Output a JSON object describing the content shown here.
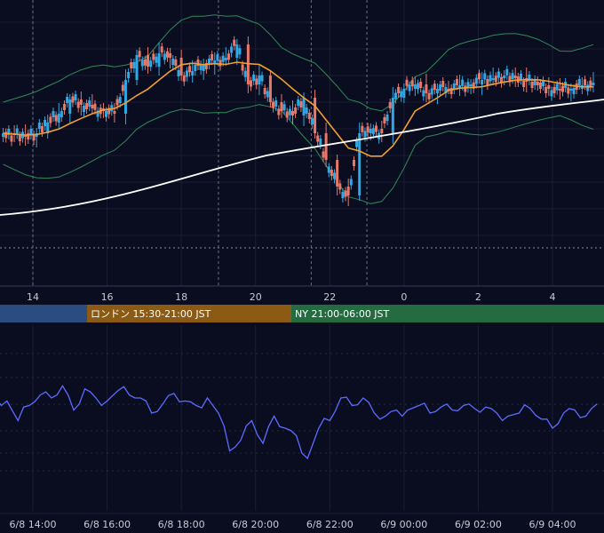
{
  "chart_data": {
    "type": "candlestick",
    "price_panel": {
      "x_hours": [
        13.2,
        13.5,
        13.8,
        14.1,
        14.4,
        14.7,
        15.0,
        15.3,
        15.6,
        15.9,
        16.2,
        16.5,
        16.8,
        17.1,
        17.4,
        17.7,
        18.0,
        18.3,
        18.6,
        18.9,
        19.2,
        19.5,
        19.8,
        20.1,
        20.4,
        20.7,
        21.0,
        21.3,
        21.6,
        21.9,
        22.2,
        22.5,
        22.8,
        23.1,
        23.4,
        23.7,
        24.0,
        24.3,
        24.6,
        24.9,
        25.2,
        25.5,
        25.8,
        26.1,
        26.4,
        26.7,
        27.0,
        27.3,
        27.6,
        27.9,
        28.2,
        28.5,
        28.8,
        29.1
      ],
      "close": [
        150,
        152,
        154,
        150,
        138,
        128,
        112,
        118,
        122,
        125,
        128,
        90,
        62,
        75,
        60,
        65,
        85,
        80,
        72,
        68,
        65,
        50,
        95,
        85,
        115,
        125,
        130,
        110,
        150,
        180,
        210,
        220,
        150,
        145,
        150,
        110,
        100,
        95,
        105,
        100,
        100,
        96,
        95,
        90,
        88,
        85,
        88,
        92,
        96,
        100,
        102,
        100,
        96,
        93
      ],
      "colors": {
        "up": "#2fa8e6",
        "down": "#e8786a",
        "ma_fast": "#f0a030",
        "ma_slow": "#ffffff",
        "band": "#2e8b57"
      }
    },
    "session_bar": [
      {
        "label": "",
        "color": "#2b4c7e"
      },
      {
        "label": "ロンドン 15:30-21:00 JST",
        "color": "#8b5a14"
      },
      {
        "label": "NY 21:00-06:00 JST",
        "color": "#256b40"
      }
    ],
    "top_axis_ticks": [
      "14",
      "16",
      "18",
      "20",
      "22",
      "0",
      "2",
      "4"
    ],
    "bottom_axis_ticks": [
      "6/8 14:00",
      "6/8 16:00",
      "6/8 18:00",
      "6/8 20:00",
      "6/8 22:00",
      "6/9 00:00",
      "6/9 02:00",
      "6/9 04:00"
    ],
    "oscillator": {
      "x_hours": [
        13.0,
        13.3,
        13.6,
        13.9,
        14.2,
        14.5,
        14.8,
        15.1,
        15.4,
        15.7,
        16.0,
        16.3,
        16.6,
        16.9,
        17.2,
        17.5,
        17.8,
        18.1,
        18.4,
        18.7,
        19.0,
        19.3,
        19.6,
        19.9,
        20.2,
        20.5,
        20.8,
        21.1,
        21.4,
        21.7,
        22.0,
        22.3,
        22.6,
        22.9,
        23.2,
        23.5,
        23.8,
        24.1,
        24.4,
        24.7,
        25.0,
        25.3,
        25.6,
        25.9,
        26.2,
        26.5,
        26.8,
        27.1,
        27.4,
        27.7,
        28.0,
        28.3,
        28.6,
        28.9,
        29.2
      ],
      "values": [
        60,
        58,
        45,
        55,
        62,
        60,
        68,
        52,
        66,
        60,
        58,
        65,
        62,
        60,
        50,
        56,
        63,
        58,
        55,
        60,
        50,
        25,
        32,
        45,
        30,
        48,
        40,
        35,
        20,
        40,
        45,
        60,
        55,
        60,
        50,
        48,
        52,
        52,
        55,
        50,
        54,
        52,
        55,
        53,
        54,
        50,
        48,
        50,
        53,
        46,
        40,
        50,
        52,
        48,
        56
      ],
      "color": "#5b6cff",
      "ylim": [
        0,
        100
      ]
    }
  }
}
